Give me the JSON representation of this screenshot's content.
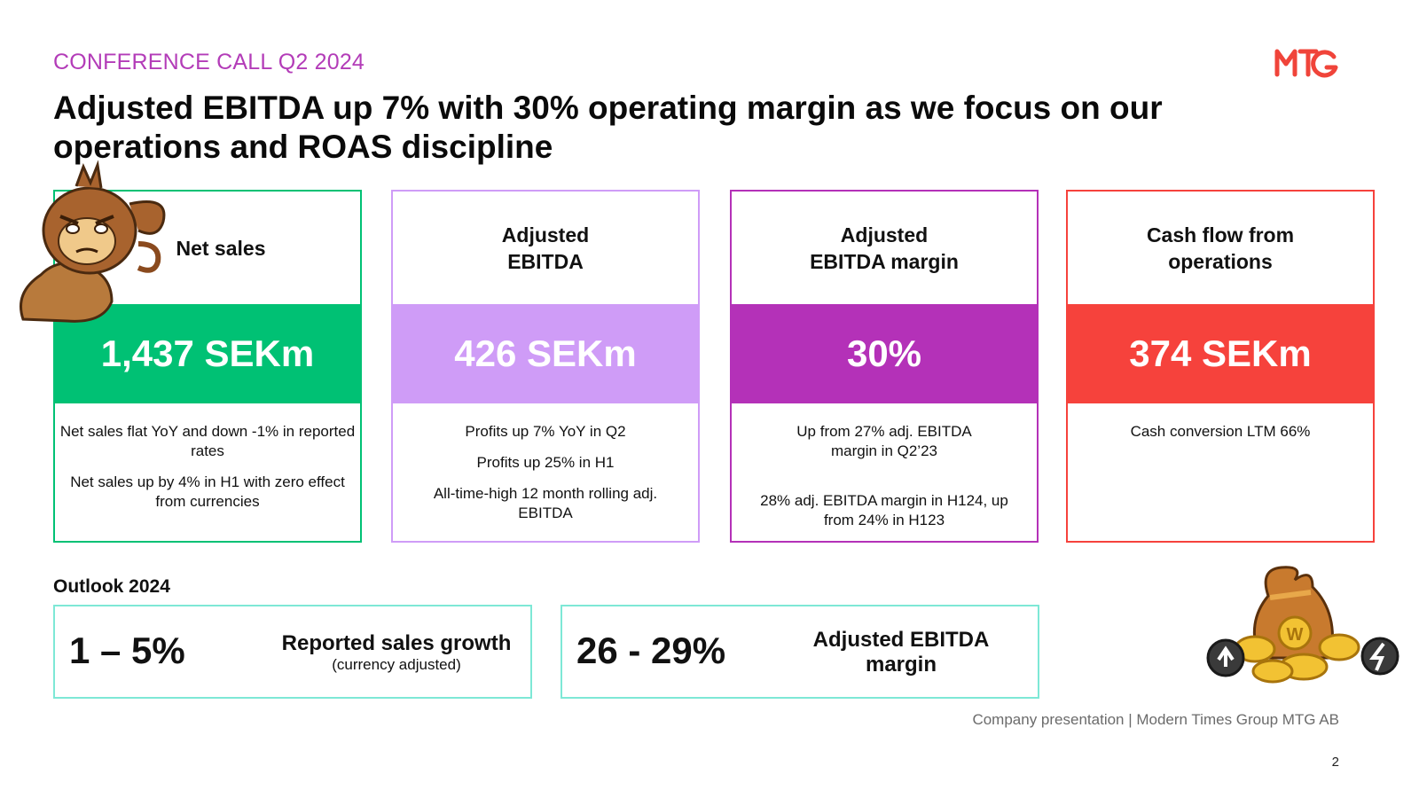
{
  "header": {
    "kicker": "CONFERENCE CALL Q2 2024",
    "title": "Adjusted EBITDA up 7% with 30% operating margin as we focus on our operations and ROAS discipline",
    "logo_text": "MTG"
  },
  "colors": {
    "kicker": "#b33cb8",
    "logo": "#f0443a",
    "card_net_sales": "#00c174",
    "card_adj_ebitda": "#cf9cf7",
    "card_margin": "#b431b8",
    "card_cashflow": "#f6423c",
    "outlook_border": "#7ee8d6"
  },
  "cards": [
    {
      "heading": "Net sales",
      "value": "1,437 SEKm",
      "notes": [
        "Net sales flat YoY and down -1% in reported rates",
        "Net sales up by 4% in H1 with zero effect from currencies"
      ]
    },
    {
      "heading": "Adjusted EBITDA",
      "value": "426 SEKm",
      "notes": [
        "Profits up 7% YoY in Q2",
        "Profits up 25% in H1",
        "All-time-high 12 month rolling adj. EBITDA"
      ]
    },
    {
      "heading": "Adjusted EBITDA margin",
      "value": "30%",
      "notes": [
        "Up from 27% adj. EBITDA margin in Q2’23",
        "28% adj. EBITDA margin in H124, up from 24% in H123"
      ]
    },
    {
      "heading": "Cash flow from operations",
      "value": "374 SEKm",
      "notes": [
        "Cash conversion LTM 66%"
      ]
    }
  ],
  "outlook": {
    "label": "Outlook 2024",
    "items": [
      {
        "value": "1 – 5%",
        "label": "Reported sales growth",
        "sublabel": "(currency adjusted)"
      },
      {
        "value": "26 - 29%",
        "label": "Adjusted EBITDA margin"
      }
    ]
  },
  "footer": {
    "text": "Company presentation | Modern Times Group MTG AB",
    "page_number": "2"
  },
  "decorations": {
    "top_left_image": "monkey-character-illustration",
    "bottom_right_image": "money-bag-coins-illustration"
  }
}
